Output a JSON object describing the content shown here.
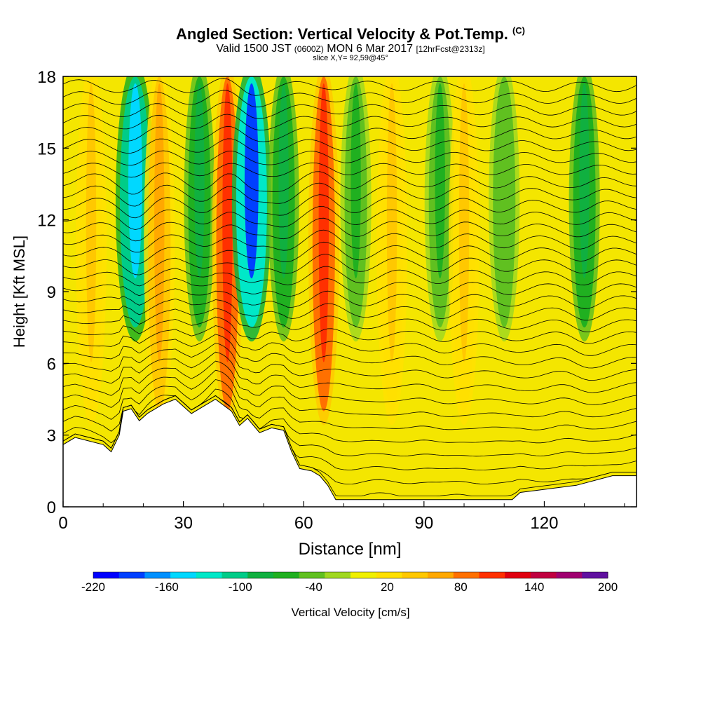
{
  "header": {
    "title": "Angled Section: Vertical Velocity & Pot.Temp.",
    "copyright": "(C)",
    "valid_prefix": "Valid 1500 JST",
    "valid_zulu": "(0600Z)",
    "valid_date": "MON 6 Mar 2017",
    "forecast": "[12hrFcst@2313z]",
    "slice": "slice X,Y= 92,59@45°"
  },
  "chart_data": {
    "type": "heatmap",
    "title": "Angled Section: Vertical Velocity & Pot.Temp.",
    "xlabel": "Distance [nm]",
    "ylabel": "Height [Kft MSL]",
    "xlim": [
      0,
      143
    ],
    "ylim": [
      0,
      18
    ],
    "x_ticks": [
      0,
      30,
      60,
      90,
      120
    ],
    "y_ticks": [
      0,
      3,
      6,
      9,
      12,
      15,
      18
    ],
    "colorbar": {
      "title": "Vertical Velocity [cm/s]",
      "labels": [
        "-220",
        "-160",
        "-100",
        "-40",
        "20",
        "80",
        "140",
        "200"
      ],
      "colors": [
        "#0000ff",
        "#0040ff",
        "#0090ff",
        "#00d8ff",
        "#00e8c8",
        "#00cc88",
        "#10b040",
        "#20b020",
        "#60c020",
        "#a0d820",
        "#f0f000",
        "#ffe000",
        "#ffc800",
        "#ffa800",
        "#ff7000",
        "#ff3000",
        "#e00010",
        "#c00040",
        "#a00070",
        "#6010a0"
      ]
    },
    "velocity_features": [
      {
        "x": 7,
        "value": 40
      },
      {
        "x": 18,
        "value": -150
      },
      {
        "x": 24,
        "value": 70
      },
      {
        "x": 34,
        "value": -80
      },
      {
        "x": 41,
        "value": 110
      },
      {
        "x": 47,
        "value": -180
      },
      {
        "x": 55,
        "value": -90
      },
      {
        "x": 65,
        "value": 100
      },
      {
        "x": 73,
        "value": -60
      },
      {
        "x": 82,
        "value": 40
      },
      {
        "x": 94,
        "value": -60
      },
      {
        "x": 100,
        "value": 40
      },
      {
        "x": 110,
        "value": -50
      },
      {
        "x": 130,
        "value": -80
      }
    ],
    "terrain_profile": [
      {
        "x": 0,
        "y": 2.6
      },
      {
        "x": 3,
        "y": 2.9
      },
      {
        "x": 10,
        "y": 2.6
      },
      {
        "x": 12,
        "y": 2.3
      },
      {
        "x": 14,
        "y": 3.0
      },
      {
        "x": 15,
        "y": 4.0
      },
      {
        "x": 17,
        "y": 4.1
      },
      {
        "x": 19,
        "y": 3.6
      },
      {
        "x": 21,
        "y": 3.9
      },
      {
        "x": 25,
        "y": 4.3
      },
      {
        "x": 28,
        "y": 4.5
      },
      {
        "x": 32,
        "y": 3.9
      },
      {
        "x": 35,
        "y": 4.2
      },
      {
        "x": 38,
        "y": 4.5
      },
      {
        "x": 42,
        "y": 4.0
      },
      {
        "x": 44,
        "y": 3.4
      },
      {
        "x": 46,
        "y": 3.7
      },
      {
        "x": 49,
        "y": 3.1
      },
      {
        "x": 52,
        "y": 3.3
      },
      {
        "x": 55,
        "y": 3.2
      },
      {
        "x": 57,
        "y": 2.3
      },
      {
        "x": 59,
        "y": 1.6
      },
      {
        "x": 62,
        "y": 1.5
      },
      {
        "x": 64,
        "y": 1.3
      },
      {
        "x": 66,
        "y": 0.9
      },
      {
        "x": 67,
        "y": 0.6
      },
      {
        "x": 68,
        "y": 0.3
      },
      {
        "x": 112,
        "y": 0.3
      },
      {
        "x": 114,
        "y": 0.6
      },
      {
        "x": 128,
        "y": 0.9
      },
      {
        "x": 137,
        "y": 1.3
      },
      {
        "x": 143,
        "y": 1.3
      }
    ],
    "theta_contour_count": 34
  }
}
